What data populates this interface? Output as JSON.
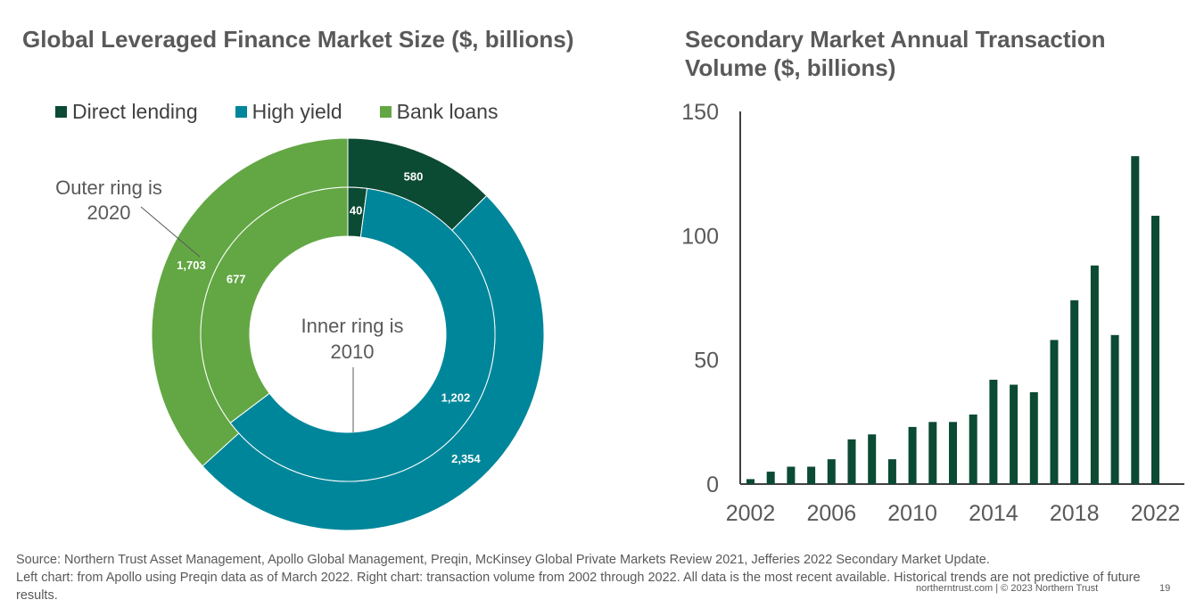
{
  "colors": {
    "direct_lending": "#0b4a33",
    "high_yield": "#00869a",
    "bank_loans": "#63a744",
    "axis": "#404040"
  },
  "chart_data": [
    {
      "type": "pie",
      "variant": "donut-two-ring",
      "title": "Global Leveraged Finance Market Size ($, billions)",
      "legend": [
        "Direct lending",
        "High yield",
        "Bank loans"
      ],
      "legend_position": "top",
      "series": [
        {
          "name": "Outer ring is 2020",
          "values": [
            580,
            2354,
            1703
          ],
          "labels": [
            "580",
            "2,354",
            "1,703"
          ]
        },
        {
          "name": "Inner ring is 2010",
          "values": [
            40,
            1202,
            677
          ],
          "labels": [
            "40",
            "1,202",
            "677"
          ]
        }
      ],
      "annotations": {
        "outer": "Outer ring is 2020",
        "outer_lines": [
          "Outer ring is",
          "2020"
        ],
        "inner": "Inner ring is 2010",
        "inner_lines": [
          "Inner ring is",
          "2010"
        ]
      }
    },
    {
      "type": "bar",
      "title": "Secondary Market Annual Transaction Volume ($, billions)",
      "categories": [
        "2002",
        "2003",
        "2004",
        "2005",
        "2006",
        "2007",
        "2008",
        "2009",
        "2010",
        "2011",
        "2012",
        "2013",
        "2014",
        "2015",
        "2016",
        "2017",
        "2018",
        "2019",
        "2020",
        "2021",
        "2022"
      ],
      "values": [
        2,
        5,
        7,
        7,
        10,
        18,
        20,
        10,
        23,
        25,
        25,
        28,
        42,
        40,
        37,
        58,
        74,
        88,
        60,
        132,
        108
      ],
      "x_tick_labels": [
        "2002",
        "2006",
        "2010",
        "2014",
        "2018",
        "2022"
      ],
      "y_ticks": [
        0,
        50,
        100,
        150
      ],
      "y_tick_labels": [
        "0",
        "50",
        "100",
        "150"
      ],
      "ylim": [
        0,
        150
      ],
      "xlabel": "",
      "ylabel": "",
      "grid": false
    }
  ],
  "source": {
    "line1": "Source: Northern Trust Asset Management, Apollo Global Management, Preqin, McKinsey Global Private Markets Review 2021, Jefferies 2022 Secondary Market Update.",
    "line2": "Left chart: from Apollo using Preqin data as of March 2022. Right chart: transaction volume from 2002 through 2022. All data is the most recent available. Historical trends are not predictive of future results."
  },
  "footer": {
    "site": "northerntrust.com  |  © 2023 Northern Trust",
    "page": "19"
  }
}
